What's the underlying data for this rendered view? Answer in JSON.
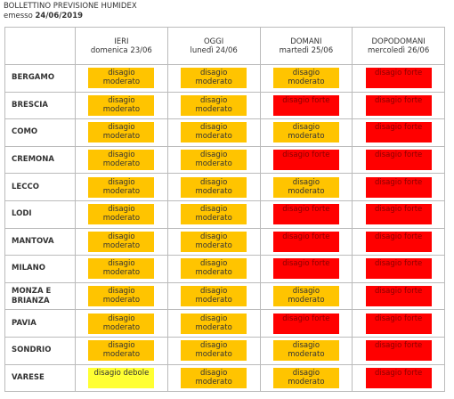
{
  "header": {
    "title": "BOLLETTINO PREVISIONE HUMIDEX",
    "issued_label": "emesso",
    "issued_date": "24/06/2019"
  },
  "table": {
    "columns": [
      {
        "day": "IERI",
        "date": "domenica 23/06"
      },
      {
        "day": "OGGI",
        "date": "lunedì 24/06"
      },
      {
        "day": "DOMANI",
        "date": "martedì 25/06"
      },
      {
        "day": "DOPODOMANI",
        "date": "mercoledì 26/06"
      }
    ],
    "rows": [
      {
        "city": "BERGAMO",
        "cells": [
          "disagio moderato",
          "disagio moderato",
          "disagio moderato",
          "disagio forte"
        ]
      },
      {
        "city": "BRESCIA",
        "cells": [
          "disagio moderato",
          "disagio moderato",
          "disagio forte",
          "disagio forte"
        ]
      },
      {
        "city": "COMO",
        "cells": [
          "disagio moderato",
          "disagio moderato",
          "disagio moderato",
          "disagio forte"
        ]
      },
      {
        "city": "CREMONA",
        "cells": [
          "disagio moderato",
          "disagio moderato",
          "disagio forte",
          "disagio forte"
        ]
      },
      {
        "city": "LECCO",
        "cells": [
          "disagio moderato",
          "disagio moderato",
          "disagio moderato",
          "disagio forte"
        ]
      },
      {
        "city": "LODI",
        "cells": [
          "disagio moderato",
          "disagio moderato",
          "disagio forte",
          "disagio forte"
        ]
      },
      {
        "city": "MANTOVA",
        "cells": [
          "disagio moderato",
          "disagio moderato",
          "disagio forte",
          "disagio forte"
        ]
      },
      {
        "city": "MILANO",
        "cells": [
          "disagio moderato",
          "disagio moderato",
          "disagio forte",
          "disagio forte"
        ]
      },
      {
        "city": "MONZA E BRIANZA",
        "cells": [
          "disagio moderato",
          "disagio moderato",
          "disagio moderato",
          "disagio forte"
        ]
      },
      {
        "city": "PAVIA",
        "cells": [
          "disagio moderato",
          "disagio moderato",
          "disagio forte",
          "disagio forte"
        ]
      },
      {
        "city": "SONDRIO",
        "cells": [
          "disagio moderato",
          "disagio moderato",
          "disagio moderato",
          "disagio forte"
        ]
      },
      {
        "city": "VARESE",
        "cells": [
          "disagio debole",
          "disagio moderato",
          "disagio moderato",
          "disagio forte"
        ]
      }
    ]
  }
}
